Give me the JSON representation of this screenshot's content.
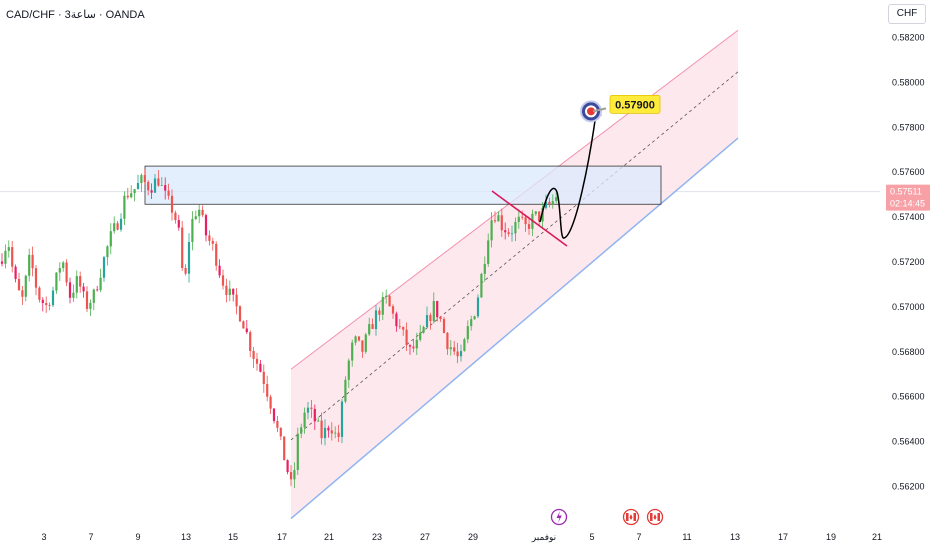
{
  "header": {
    "symbol_title": "CAD/CHF · 3ساعة · OANDA",
    "currency": "CHF"
  },
  "chart_data": {
    "type": "candlestick",
    "y_ticks": [
      "0.58200",
      "0.58000",
      "0.57800",
      "0.57600",
      "0.57400",
      "0.57200",
      "0.57000",
      "0.56800",
      "0.56600",
      "0.56400",
      "0.56200"
    ],
    "ylim": [
      0.5607,
      0.5838
    ],
    "x_ticks": [
      "3",
      "7",
      "9",
      "13",
      "15",
      "17",
      "21",
      "23",
      "27",
      "29",
      "نوفمبر",
      "5",
      "7",
      "11",
      "13",
      "17",
      "19",
      "21"
    ],
    "current_price": "0.57511",
    "countdown": "02:14:45",
    "target_label": "0.57900",
    "target_price": 0.579,
    "resistance_zone": {
      "low": 0.57455,
      "high": 0.57625
    },
    "channel": {
      "upper_from": 0.5672,
      "upper_to": 0.5823,
      "mid_from": 0.56405,
      "mid_to": 0.58045,
      "lower_from": 0.56055,
      "lower_to": 0.5775
    },
    "colors": {
      "up": "#26a69a",
      "up_alt": "#4caf50",
      "down": "#ef5350",
      "down_alt": "#e91e63",
      "channel_fill": "#fde3e8",
      "channel_upper": "#f48fb1",
      "channel_lower": "#90b4f0",
      "zone_fill": "#dbeafe",
      "target_badge": "#ffeb3b",
      "price_badge": "#f7a1a7"
    },
    "events": [
      "lightning-icon",
      "canada-flag-icon",
      "canada-flag-icon"
    ]
  }
}
